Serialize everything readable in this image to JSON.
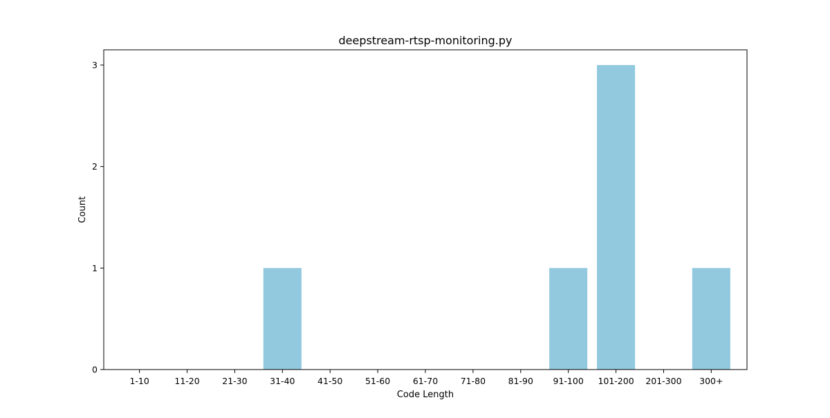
{
  "chart_data": {
    "type": "bar",
    "title": "deepstream-rtsp-monitoring.py",
    "xlabel": "Code Length",
    "ylabel": "Count",
    "categories": [
      "1-10",
      "11-20",
      "21-30",
      "31-40",
      "41-50",
      "51-60",
      "61-70",
      "71-80",
      "81-90",
      "91-100",
      "101-200",
      "201-300",
      "300+"
    ],
    "values": [
      0,
      0,
      0,
      1,
      0,
      0,
      0,
      0,
      0,
      1,
      3,
      0,
      1
    ],
    "ylim": [
      0,
      3.15
    ],
    "yticks": [
      0,
      1,
      2,
      3
    ],
    "bar_color": "#92c9df",
    "grid": false,
    "legend": "none"
  }
}
